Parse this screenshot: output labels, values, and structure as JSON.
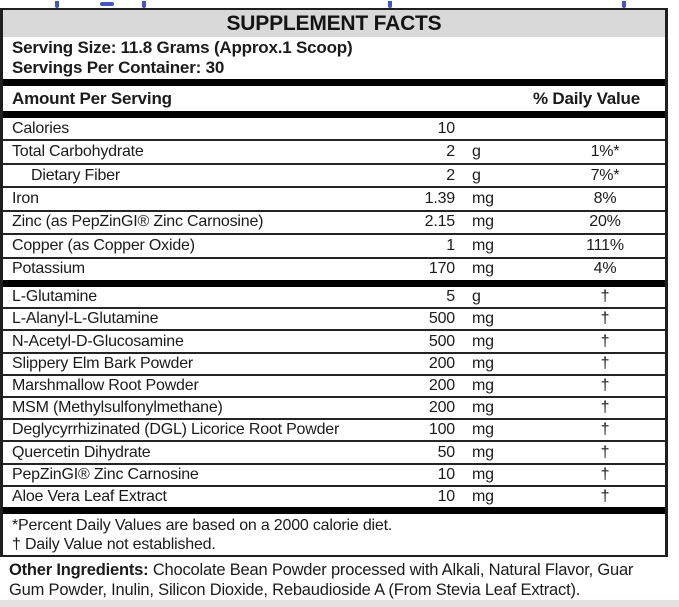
{
  "label": {
    "title": "SUPPLEMENT FACTS",
    "serving_size": "Serving Size: 11.8 Grams (Approx.1 Scoop)",
    "servings_per_container": "Servings Per Container: 30",
    "header": {
      "amount_col": "Amount Per Serving",
      "daily_value_col": "% Daily Value"
    },
    "sections": [
      {
        "rows": [
          {
            "name": "Calories",
            "amount": "10",
            "unit": "",
            "dv": "",
            "indent": false
          },
          {
            "name": "Total Carbohydrate",
            "amount": "2",
            "unit": "g",
            "dv": "1%*",
            "indent": false
          },
          {
            "name": "Dietary Fiber",
            "amount": "2",
            "unit": "g",
            "dv": "7%*",
            "indent": true
          },
          {
            "name": "Iron",
            "amount": "1.39",
            "unit": "mg",
            "dv": "8%",
            "indent": false
          },
          {
            "name": "Zinc (as PepZinGI® Zinc Carnosine)",
            "amount": "2.15",
            "unit": "mg",
            "dv": "20%",
            "indent": false
          },
          {
            "name": "Copper (as Copper Oxide)",
            "amount": "1",
            "unit": "mg",
            "dv": "111%",
            "indent": false
          },
          {
            "name": "Potassium",
            "amount": "170",
            "unit": "mg",
            "dv": "4%",
            "indent": false
          }
        ]
      },
      {
        "rows": [
          {
            "name": "L-Glutamine",
            "amount": "5",
            "unit": "g",
            "dv": "†",
            "indent": false
          },
          {
            "name": "L-Alanyl-L-Glutamine",
            "amount": "500",
            "unit": "mg",
            "dv": "†",
            "indent": false
          },
          {
            "name": "N-Acetyl-D-Glucosamine",
            "amount": "500",
            "unit": "mg",
            "dv": "†",
            "indent": false
          },
          {
            "name": "Slippery Elm Bark Powder",
            "amount": "200",
            "unit": "mg",
            "dv": "†",
            "indent": false
          },
          {
            "name": "Marshmallow Root Powder",
            "amount": "200",
            "unit": "mg",
            "dv": "†",
            "indent": false
          },
          {
            "name": "MSM (Methylsulfonylmethane)",
            "amount": "200",
            "unit": "mg",
            "dv": "†",
            "indent": false
          },
          {
            "name": "Deglycyrrhizinated (DGL) Licorice Root Powder",
            "amount": "100",
            "unit": "mg",
            "dv": "†",
            "indent": false
          },
          {
            "name": "Quercetin Dihydrate",
            "amount": "50",
            "unit": "mg",
            "dv": "†",
            "indent": false
          },
          {
            "name": "PepZinGI® Zinc Carnosine",
            "amount": "10",
            "unit": "mg",
            "dv": "†",
            "indent": false
          },
          {
            "name": "Aloe Vera Leaf Extract",
            "amount": "10",
            "unit": "mg",
            "dv": "†",
            "indent": false
          }
        ]
      }
    ],
    "footnotes": [
      "*Percent Daily Values are based on a 2000 calorie diet.",
      "† Daily Value not established."
    ],
    "other_ingredients_label": "Other Ingredients:",
    "other_ingredients_text": "Chocolate Bean Powder processed with Alkali, Natural Flavor, Guar Gum Powder, Inulin, Silicon Dioxide, Rebaudioside A (From Stevia Leaf Extract)."
  },
  "colors": {
    "title_band_bg": "#d9d9d9",
    "border": "#000000",
    "text": "#1b1b1b",
    "cropped_text_blue": "#4156c4",
    "bottom_strip": "#e4e2e0"
  }
}
